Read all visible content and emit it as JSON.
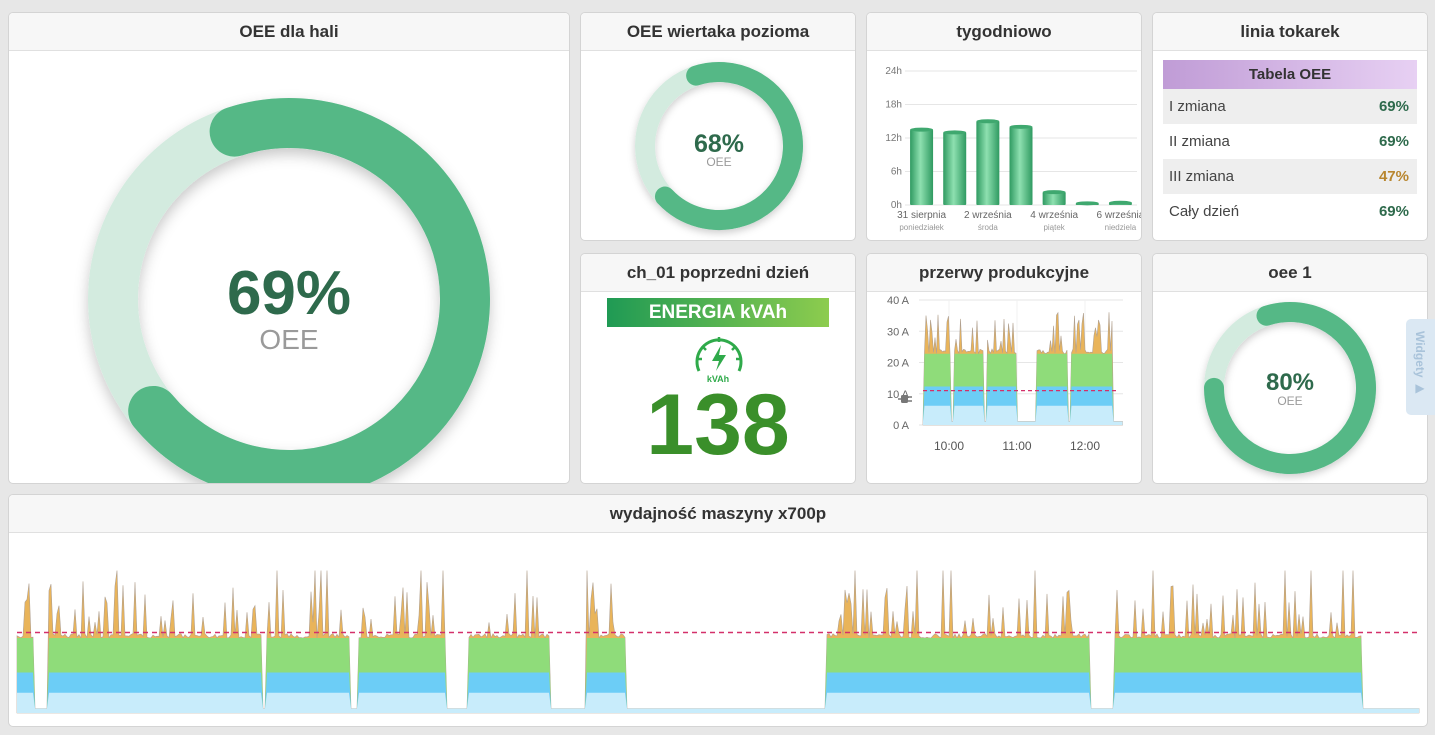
{
  "colors": {
    "green": "#55b886",
    "green_light": "#d3ebdf",
    "dark_green_text": "#2e6a4c",
    "bars_green": "#8fdc7a",
    "blue": "#6ccdf6",
    "blue_light": "#c8ecfb",
    "peak_orange": "#e9b45a",
    "threshold_red": "#d4306a",
    "energy_green": "#3a9a33",
    "table_header": "#c99fd9",
    "warn_orange": "#b8862f"
  },
  "widgets": {
    "hall": {
      "title": "OEE dla hali",
      "value": "69%",
      "label": "OEE",
      "fraction": 0.69
    },
    "drill": {
      "title": "OEE wiertaka pozioma",
      "value": "68%",
      "label": "OEE",
      "fraction": 0.68
    },
    "weekly": {
      "title": "tygodniowo",
      "chart_data": {
        "type": "bar",
        "categories": [
          "31 sierpnia",
          "",
          "2 września",
          "",
          "4 września",
          "",
          "6 września"
        ],
        "sublabels": [
          "poniedziałek",
          "",
          "środa",
          "",
          "piątek",
          "",
          "niedziela"
        ],
        "values": [
          13.5,
          13,
          15,
          14,
          2.3,
          0.3,
          0.4
        ],
        "yticks": [
          "0h",
          "6h",
          "12h",
          "18h",
          "24h"
        ],
        "ylim": [
          0,
          24
        ],
        "grid": true
      }
    },
    "lathe": {
      "title": "linia tokarek",
      "table_title": "Tabela OEE",
      "rows": [
        {
          "label": "I zmiana",
          "value": "69%",
          "color": "#2e6a4c"
        },
        {
          "label": "II zmiana",
          "value": "69%",
          "color": "#2e6a4c"
        },
        {
          "label": "III zmiana",
          "value": "47%",
          "color": "#b8862f"
        },
        {
          "label": "Cały dzień",
          "value": "69%",
          "color": "#2e6a4c"
        }
      ]
    },
    "energy": {
      "title": "ch_01 poprzedni dzień",
      "banner": "ENERGIA kVAh",
      "unit": "kVAh",
      "value": "138",
      "icon": "gauge-lightning-icon"
    },
    "breaks": {
      "title": "przerwy produkcyjne",
      "chart_data": {
        "type": "area",
        "yticks": [
          "0 A",
          "10 A",
          "20 A",
          "30 A",
          "40 A"
        ],
        "ylim": [
          0,
          40
        ],
        "xticks": [
          "10:00",
          "11:00",
          "12:00"
        ],
        "threshold": 11,
        "grid": true
      }
    },
    "oee1": {
      "title": "oee 1",
      "value": "80%",
      "label": "OEE",
      "fraction": 0.8
    },
    "machine": {
      "title": "wydajność maszyny x700p",
      "chart_data": {
        "type": "area",
        "threshold": 0.55
      }
    }
  },
  "side_tab": {
    "label": "Widgety ▶"
  }
}
